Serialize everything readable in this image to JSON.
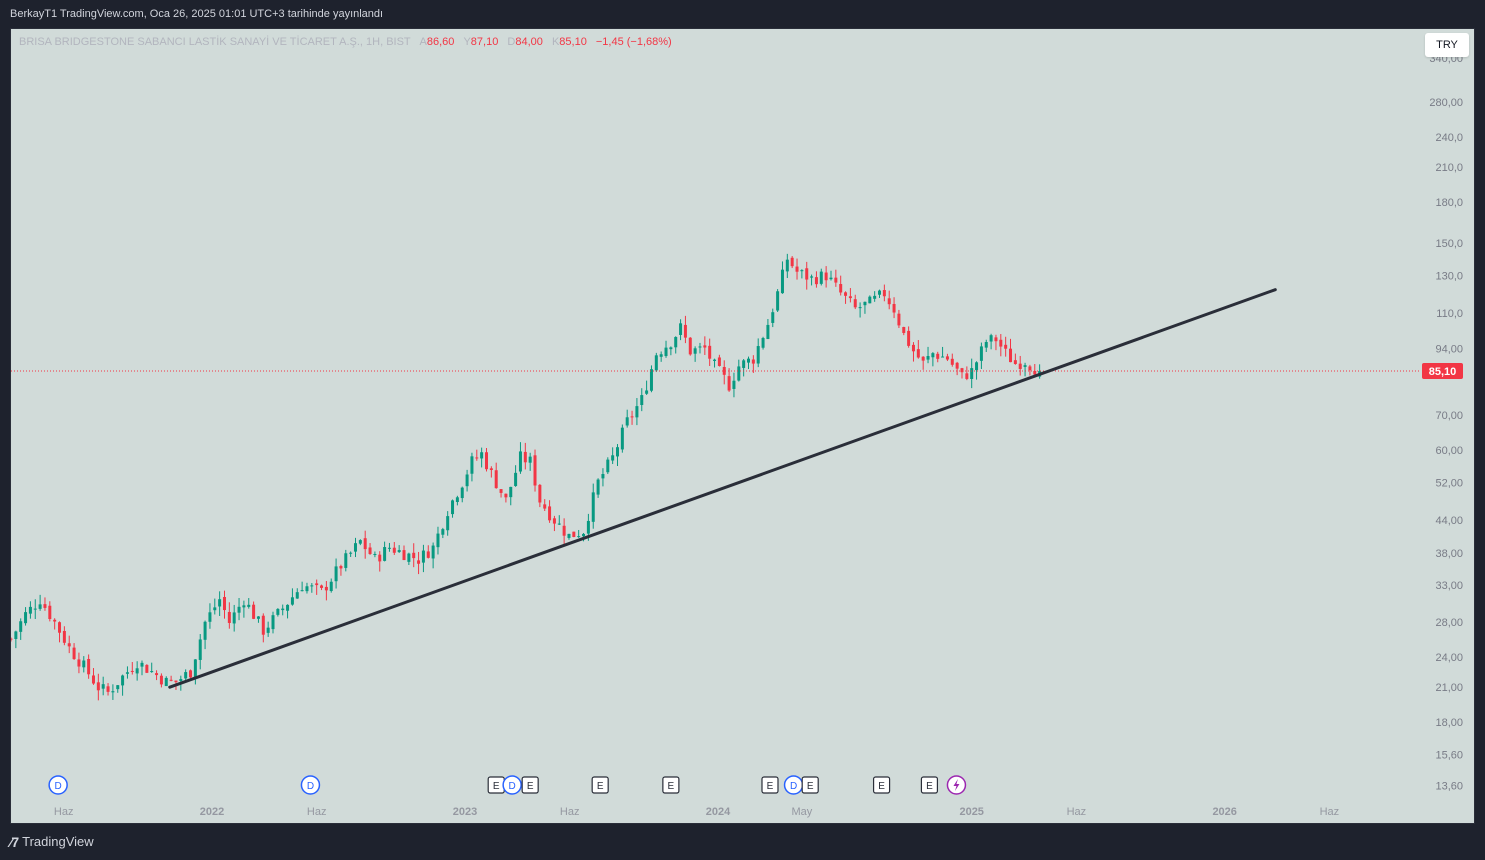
{
  "header": {
    "publisher": "BerkayT1 TradingView.com, Oca 26, 2025 01:01 UTC+3 tarihinde yayınlandı"
  },
  "legend": {
    "symbol": "BRISA BRIDGESTONE SABANCI LASTİK SANAYİ VE TİCARET A.Ş., 1H, BIST",
    "open_label": "A",
    "open": "86,60",
    "high_label": "Y",
    "high": "87,10",
    "low_label": "D",
    "low": "84,00",
    "close_label": "K",
    "close": "85,10",
    "change": "−1,45 (−1,68%)"
  },
  "currency_button": "TRY",
  "footer": {
    "brand": "TradingView",
    "logo_icon": "tradingview-logo-icon"
  },
  "colors": {
    "up": "#089981",
    "down": "#f23645",
    "background": "#d1dbd9",
    "trendline": "#2a2e39"
  },
  "chart_data": {
    "type": "candlestick",
    "y_scale": "log",
    "ylim": [
      12.8,
      370
    ],
    "y_ticks": [
      {
        "value": 13.6,
        "label": "13,60"
      },
      {
        "value": 15.6,
        "label": "15,60"
      },
      {
        "value": 18.0,
        "label": "18,00"
      },
      {
        "value": 21.0,
        "label": "21,00"
      },
      {
        "value": 24.0,
        "label": "24,00"
      },
      {
        "value": 28.0,
        "label": "28,00"
      },
      {
        "value": 33.0,
        "label": "33,00"
      },
      {
        "value": 38.0,
        "label": "38,00"
      },
      {
        "value": 44.0,
        "label": "44,00"
      },
      {
        "value": 52.0,
        "label": "52,00"
      },
      {
        "value": 60.0,
        "label": "60,00"
      },
      {
        "value": 70.0,
        "label": "70,00"
      },
      {
        "value": 94.0,
        "label": "94,00"
      },
      {
        "value": 110.0,
        "label": "110,0"
      },
      {
        "value": 130.0,
        "label": "130,0"
      },
      {
        "value": 150.0,
        "label": "150,0"
      },
      {
        "value": 180.0,
        "label": "180,0"
      },
      {
        "value": 210.0,
        "label": "210,0"
      },
      {
        "value": 240.0,
        "label": "240,0"
      },
      {
        "value": 280.0,
        "label": "280,00"
      },
      {
        "value": 340.0,
        "label": "340,00"
      }
    ],
    "xlim": [
      "2021-03-17",
      "2026-10-04"
    ],
    "x_ticks": [
      {
        "date": "2021-06-01",
        "label": "Haz",
        "bold": false
      },
      {
        "date": "2022-01-01",
        "label": "2022",
        "bold": true
      },
      {
        "date": "2022-06-01",
        "label": "Haz",
        "bold": false
      },
      {
        "date": "2023-01-01",
        "label": "2023",
        "bold": true
      },
      {
        "date": "2023-06-01",
        "label": "Haz",
        "bold": false
      },
      {
        "date": "2024-01-01",
        "label": "2024",
        "bold": true
      },
      {
        "date": "2024-05-01",
        "label": "May",
        "bold": false
      },
      {
        "date": "2025-01-01",
        "label": "2025",
        "bold": true
      },
      {
        "date": "2025-06-01",
        "label": "Haz",
        "bold": false
      },
      {
        "date": "2026-01-01",
        "label": "2026",
        "bold": true
      },
      {
        "date": "2026-06-01",
        "label": "Haz",
        "bold": false
      }
    ],
    "last_price": {
      "value": 85.1,
      "label": "85,10"
    },
    "candle_interval_days": 7,
    "path_start_date": "2021-03-17",
    "price_path": [
      [
        0,
        26
      ],
      [
        3,
        29
      ],
      [
        6,
        31
      ],
      [
        9,
        28
      ],
      [
        12,
        25
      ],
      [
        15,
        23
      ],
      [
        18,
        21
      ],
      [
        20,
        20.5
      ],
      [
        23,
        22
      ],
      [
        26,
        23.5
      ],
      [
        29,
        22.5
      ],
      [
        32,
        21.5
      ],
      [
        34,
        21.5
      ],
      [
        37,
        22.5
      ],
      [
        40,
        28
      ],
      [
        43,
        31
      ],
      [
        45,
        28
      ],
      [
        48,
        31
      ],
      [
        52,
        27
      ],
      [
        55,
        29
      ],
      [
        60,
        33
      ],
      [
        64,
        32
      ],
      [
        68,
        36
      ],
      [
        72,
        40
      ],
      [
        75,
        37
      ],
      [
        78,
        39
      ],
      [
        81,
        38
      ],
      [
        84,
        37
      ],
      [
        87,
        39
      ],
      [
        90,
        46
      ],
      [
        93,
        52
      ],
      [
        95,
        57
      ],
      [
        97,
        59
      ],
      [
        99,
        54
      ],
      [
        102,
        48
      ],
      [
        105,
        58
      ],
      [
        107,
        57
      ],
      [
        109,
        48
      ],
      [
        112,
        44
      ],
      [
        115,
        41
      ],
      [
        118,
        42
      ],
      [
        121,
        52
      ],
      [
        124,
        58
      ],
      [
        127,
        68
      ],
      [
        130,
        75
      ],
      [
        133,
        92
      ],
      [
        136,
        97
      ],
      [
        138,
        103
      ],
      [
        140,
        93
      ],
      [
        143,
        94
      ],
      [
        145,
        87
      ],
      [
        148,
        80
      ],
      [
        150,
        87
      ],
      [
        153,
        90
      ],
      [
        156,
        105
      ],
      [
        158,
        120
      ],
      [
        160,
        140
      ],
      [
        162,
        132
      ],
      [
        165,
        128
      ],
      [
        168,
        130
      ],
      [
        171,
        120
      ],
      [
        174,
        112
      ],
      [
        177,
        115
      ],
      [
        180,
        120
      ],
      [
        182,
        112
      ],
      [
        184,
        100
      ],
      [
        186,
        93
      ],
      [
        188,
        88
      ],
      [
        190,
        92
      ],
      [
        193,
        90
      ],
      [
        196,
        83
      ],
      [
        198,
        85
      ],
      [
        201,
        97
      ],
      [
        203,
        98
      ],
      [
        205,
        92
      ],
      [
        207,
        88
      ],
      [
        209,
        89
      ],
      [
        212,
        85
      ]
    ],
    "trendline": {
      "start": [
        "2021-11-01",
        21.0
      ],
      "end": [
        "2026-03-15",
        122.0
      ]
    },
    "events": [
      {
        "date": "2021-05-24",
        "type": "D"
      },
      {
        "date": "2022-05-23",
        "type": "D"
      },
      {
        "date": "2023-02-15",
        "type": "E"
      },
      {
        "date": "2023-03-10",
        "type": "D"
      },
      {
        "date": "2023-04-05",
        "type": "E"
      },
      {
        "date": "2023-07-15",
        "type": "E"
      },
      {
        "date": "2023-10-25",
        "type": "E"
      },
      {
        "date": "2024-03-16",
        "type": "E"
      },
      {
        "date": "2024-04-19",
        "type": "D"
      },
      {
        "date": "2024-05-13",
        "type": "E"
      },
      {
        "date": "2024-08-24",
        "type": "E"
      },
      {
        "date": "2024-11-01",
        "type": "E"
      },
      {
        "date": "2024-12-10",
        "type": "split"
      }
    ]
  }
}
